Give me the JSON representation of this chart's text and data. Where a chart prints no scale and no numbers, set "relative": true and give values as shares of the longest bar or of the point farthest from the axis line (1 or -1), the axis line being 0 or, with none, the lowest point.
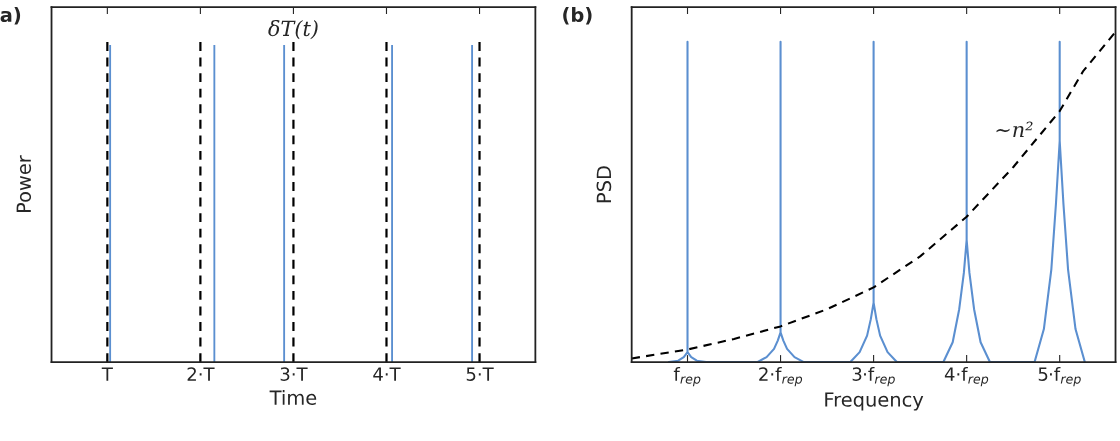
{
  "chart_data": [
    {
      "type": "bar",
      "title": "a)",
      "xlabel": "Time",
      "ylabel": "Power",
      "relative": true,
      "xlim": [
        0.4,
        5.6
      ],
      "xticks": [
        {
          "value": 1,
          "label": "T"
        },
        {
          "value": 2,
          "label": "2·T"
        },
        {
          "value": 3,
          "label": "3·T"
        },
        {
          "value": 4,
          "label": "4·T"
        },
        {
          "value": 5,
          "label": "5·T"
        }
      ],
      "series": [
        {
          "color": "#5b8fd0",
          "x": [
            1.03,
            2.15,
            2.9,
            4.06,
            4.92
          ],
          "values": [
            1,
            1,
            1,
            1,
            1
          ]
        }
      ],
      "ref_lines": [
        {
          "axis": "x",
          "value": 1,
          "color": "#000000",
          "line_style": "dashed"
        },
        {
          "axis": "x",
          "value": 2,
          "color": "#000000",
          "line_style": "dashed"
        },
        {
          "axis": "x",
          "value": 3,
          "color": "#000000",
          "line_style": "dashed"
        },
        {
          "axis": "x",
          "value": 4,
          "color": "#000000",
          "line_style": "dashed"
        },
        {
          "axis": "x",
          "value": 5,
          "color": "#000000",
          "line_style": "dashed"
        }
      ],
      "annotations": [
        "δT(t)"
      ],
      "grid": false,
      "legend": false
    },
    {
      "type": "line",
      "title": "(b)",
      "xlabel": "Frequency",
      "ylabel": "PSD",
      "relative": true,
      "xlim": [
        0.4,
        5.6
      ],
      "xticks": [
        {
          "value": 1,
          "label": "f$_{rep}$"
        },
        {
          "value": 2,
          "label": "2·f$_{rep}$"
        },
        {
          "value": 3,
          "label": "3·f$_{rep}$"
        },
        {
          "value": 4,
          "label": "4·f$_{rep}$"
        },
        {
          "value": 5,
          "label": "5·f$_{rep}$"
        }
      ],
      "series": [
        {
          "color": "#5b8fd0",
          "line_style": "solid",
          "x": [
            0.8,
            0.9,
            0.96,
            1,
            1,
            1,
            1.04,
            1.1,
            1.2,
            1.75,
            1.85,
            1.93,
            1.97,
            2,
            2,
            2,
            2.03,
            2.07,
            2.15,
            2.25,
            2.75,
            2.85,
            2.93,
            2.97,
            3,
            3,
            3,
            3.03,
            3.07,
            3.15,
            3.25,
            3.75,
            3.85,
            3.92,
            3.97,
            4,
            4,
            4,
            4.03,
            4.08,
            4.15,
            4.25,
            4.73,
            4.83,
            4.91,
            4.96,
            5,
            5,
            5,
            5.04,
            5.09,
            5.17,
            5.27
          ],
          "values": [
            0,
            0.004,
            0.015,
            0.03,
            0.97,
            0.03,
            0.015,
            0.004,
            0,
            0,
            0.015,
            0.04,
            0.065,
            0.09,
            0.97,
            0.09,
            0.065,
            0.04,
            0.015,
            0,
            0,
            0.03,
            0.08,
            0.13,
            0.18,
            0.97,
            0.18,
            0.13,
            0.08,
            0.03,
            0,
            0,
            0.06,
            0.16,
            0.27,
            0.37,
            0.97,
            0.37,
            0.27,
            0.16,
            0.06,
            0,
            0,
            0.1,
            0.28,
            0.48,
            0.67,
            0.97,
            0.67,
            0.48,
            0.28,
            0.1,
            0
          ]
        },
        {
          "color": "#000000",
          "line_style": "dashed",
          "x": [
            0.4,
            1,
            1.5,
            2,
            2.5,
            3,
            3.5,
            4,
            4.5,
            5,
            5.25,
            5.6
          ],
          "values": [
            0.011,
            0.038,
            0.07,
            0.108,
            0.16,
            0.226,
            0.32,
            0.44,
            0.59,
            0.76,
            0.88,
            1.0
          ]
        }
      ],
      "annotations": [
        "∼n²"
      ],
      "grid": false,
      "legend": false
    }
  ]
}
